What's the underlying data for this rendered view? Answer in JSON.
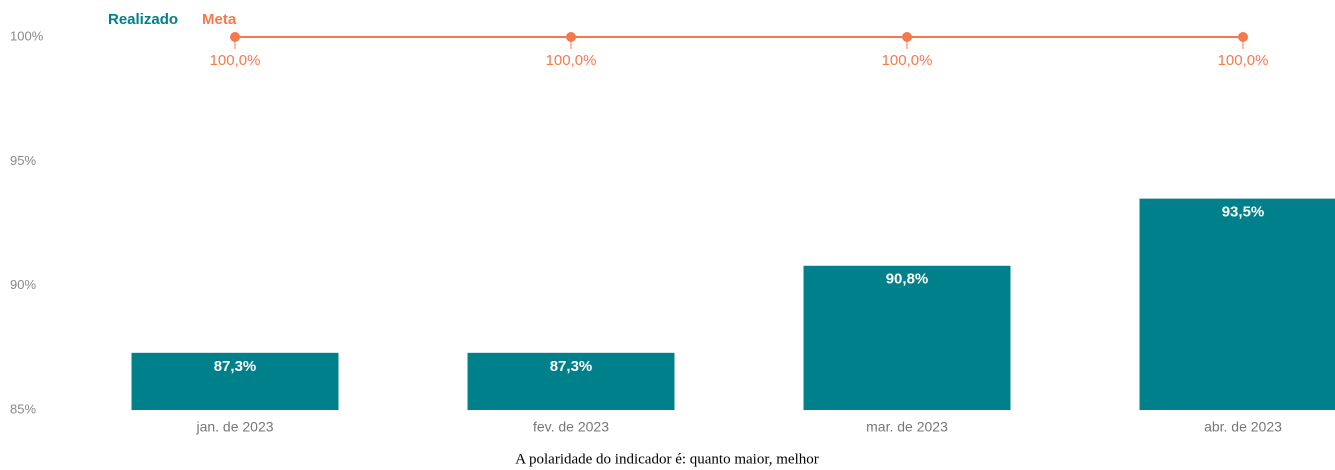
{
  "chart_data": {
    "type": "bar_line",
    "categories": [
      "jan. de 2023",
      "fev. de 2023",
      "mar. de 2023",
      "abr. de 2023"
    ],
    "series": [
      {
        "name": "Realizado",
        "type": "bar",
        "color": "#00808a",
        "values": [
          87.3,
          87.3,
          90.8,
          93.5
        ],
        "value_labels": [
          "87,3%",
          "87,3%",
          "90,8%",
          "93,5%"
        ]
      },
      {
        "name": "Meta",
        "type": "line",
        "color": "#f47a4c",
        "values": [
          100,
          100,
          100,
          100
        ],
        "value_labels": [
          "100,0%",
          "100,0%",
          "100,0%",
          "100,0%"
        ]
      }
    ],
    "ylim": [
      85,
      100
    ],
    "yticks": [
      {
        "value": 85,
        "label": "85%"
      },
      {
        "value": 90,
        "label": "90%"
      },
      {
        "value": 95,
        "label": "95%"
      },
      {
        "value": 100,
        "label": "100%"
      }
    ],
    "grid": false,
    "footnote": "A polaridade do indicador é: quanto maior, melhor"
  }
}
